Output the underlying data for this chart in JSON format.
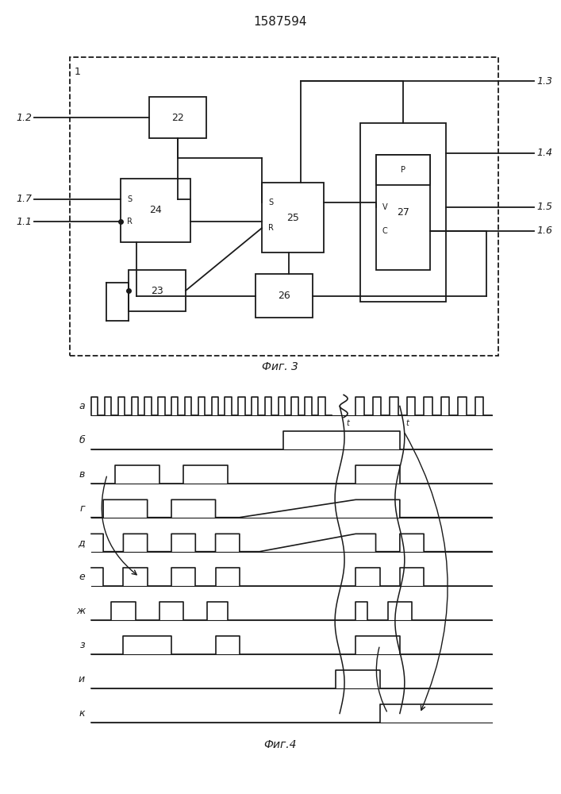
{
  "title": "1587594",
  "fig3_label": "Фиг. 3",
  "fig4_label": "Фиг.4",
  "bg_color": "#ffffff",
  "line_color": "#1a1a1a",
  "waveform_labels": [
    "а",
    "б",
    "в",
    "г",
    "д",
    "е",
    "ж",
    "з",
    "и",
    "к"
  ]
}
